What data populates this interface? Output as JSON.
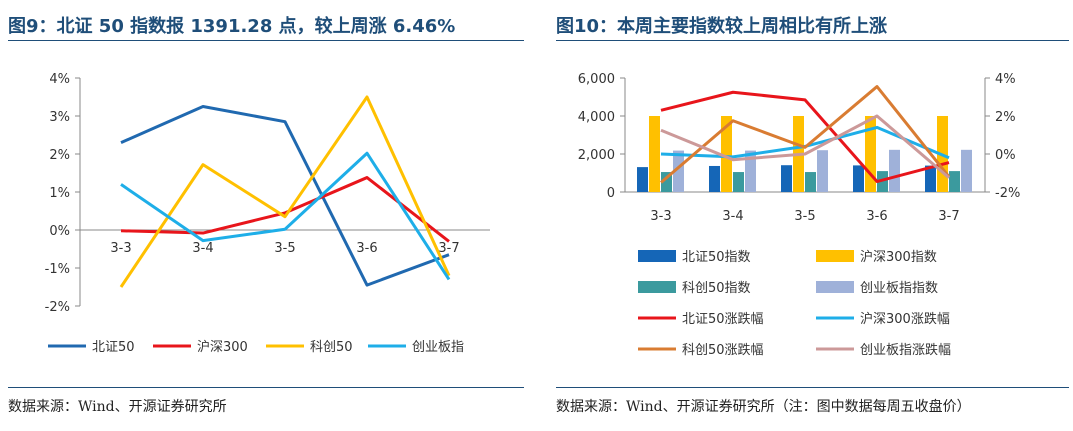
{
  "left": {
    "title": "图9：北证 50 指数报 1391.28 点，较上周涨 6.46%",
    "source": "数据来源：Wind、开源证券研究所"
  },
  "right": {
    "title": "图10：本周主要指数较上周相比有所上涨",
    "source": "数据来源：Wind、开源证券研究所（注：图中数据每周五收盘价）"
  },
  "chart_data": [
    {
      "type": "line",
      "title": "北证 50 指数报 1391.28 点，较上周涨 6.46%",
      "categories": [
        "3-3",
        "3-4",
        "3-5",
        "3-6",
        "3-7"
      ],
      "ylim": [
        -2,
        4
      ],
      "yticks": [
        "4%",
        "3%",
        "2%",
        "1%",
        "0%",
        "-1%",
        "-2%"
      ],
      "series": [
        {
          "name": "北证50",
          "color": "#2069b0",
          "values": [
            2.3,
            3.25,
            2.85,
            -1.45,
            -0.65
          ]
        },
        {
          "name": "沪深300",
          "color": "#e8151b",
          "values": [
            -0.02,
            -0.08,
            0.45,
            1.38,
            -0.3
          ]
        },
        {
          "name": "科创50",
          "color": "#ffc000",
          "values": [
            -1.5,
            1.72,
            0.35,
            3.5,
            -1.2
          ]
        },
        {
          "name": "创业板指",
          "color": "#1eaee8",
          "values": [
            1.2,
            -0.28,
            0.02,
            2.02,
            -1.3
          ]
        }
      ]
    },
    {
      "type": "bar",
      "title": "本周主要指数较上周相比有所上涨",
      "categories": [
        "3-3",
        "3-4",
        "3-5",
        "3-6",
        "3-7"
      ],
      "ylim": [
        0,
        6000
      ],
      "y2lim": [
        -2,
        4
      ],
      "yticks": [
        "6,000",
        "4,000",
        "2,000",
        "0"
      ],
      "y2ticks": [
        "4%",
        "2%",
        "0%",
        "-2%"
      ],
      "bar_series": [
        {
          "name": "北证50指数",
          "color": "#1566b7",
          "values": [
            1310,
            1370,
            1410,
            1400,
            1390
          ]
        },
        {
          "name": "沪深300指数",
          "color": "#ffc000",
          "values": [
            4000,
            4000,
            4000,
            4000,
            4000
          ]
        },
        {
          "name": "科创50指数",
          "color": "#3b9a9e",
          "values": [
            1050,
            1050,
            1050,
            1100,
            1100
          ]
        },
        {
          "name": "创业板指指数",
          "color": "#9fb1d9",
          "values": [
            2180,
            2180,
            2200,
            2220,
            2220
          ]
        }
      ],
      "line_series": [
        {
          "name": "北证50涨跌幅",
          "color": "#e8151b",
          "values": [
            2.3,
            3.25,
            2.85,
            -1.45,
            -0.45
          ]
        },
        {
          "name": "沪深300涨跌幅",
          "color": "#1eaee8",
          "values": [
            0.0,
            -0.15,
            0.4,
            1.4,
            -0.2
          ]
        },
        {
          "name": "科创50涨跌幅",
          "color": "#d97c32",
          "values": [
            -1.5,
            1.75,
            0.35,
            3.55,
            -1.2
          ]
        },
        {
          "name": "创业板指涨跌幅",
          "color": "#cc9999",
          "values": [
            1.25,
            -0.3,
            0.0,
            2.0,
            -1.25
          ]
        }
      ]
    }
  ]
}
